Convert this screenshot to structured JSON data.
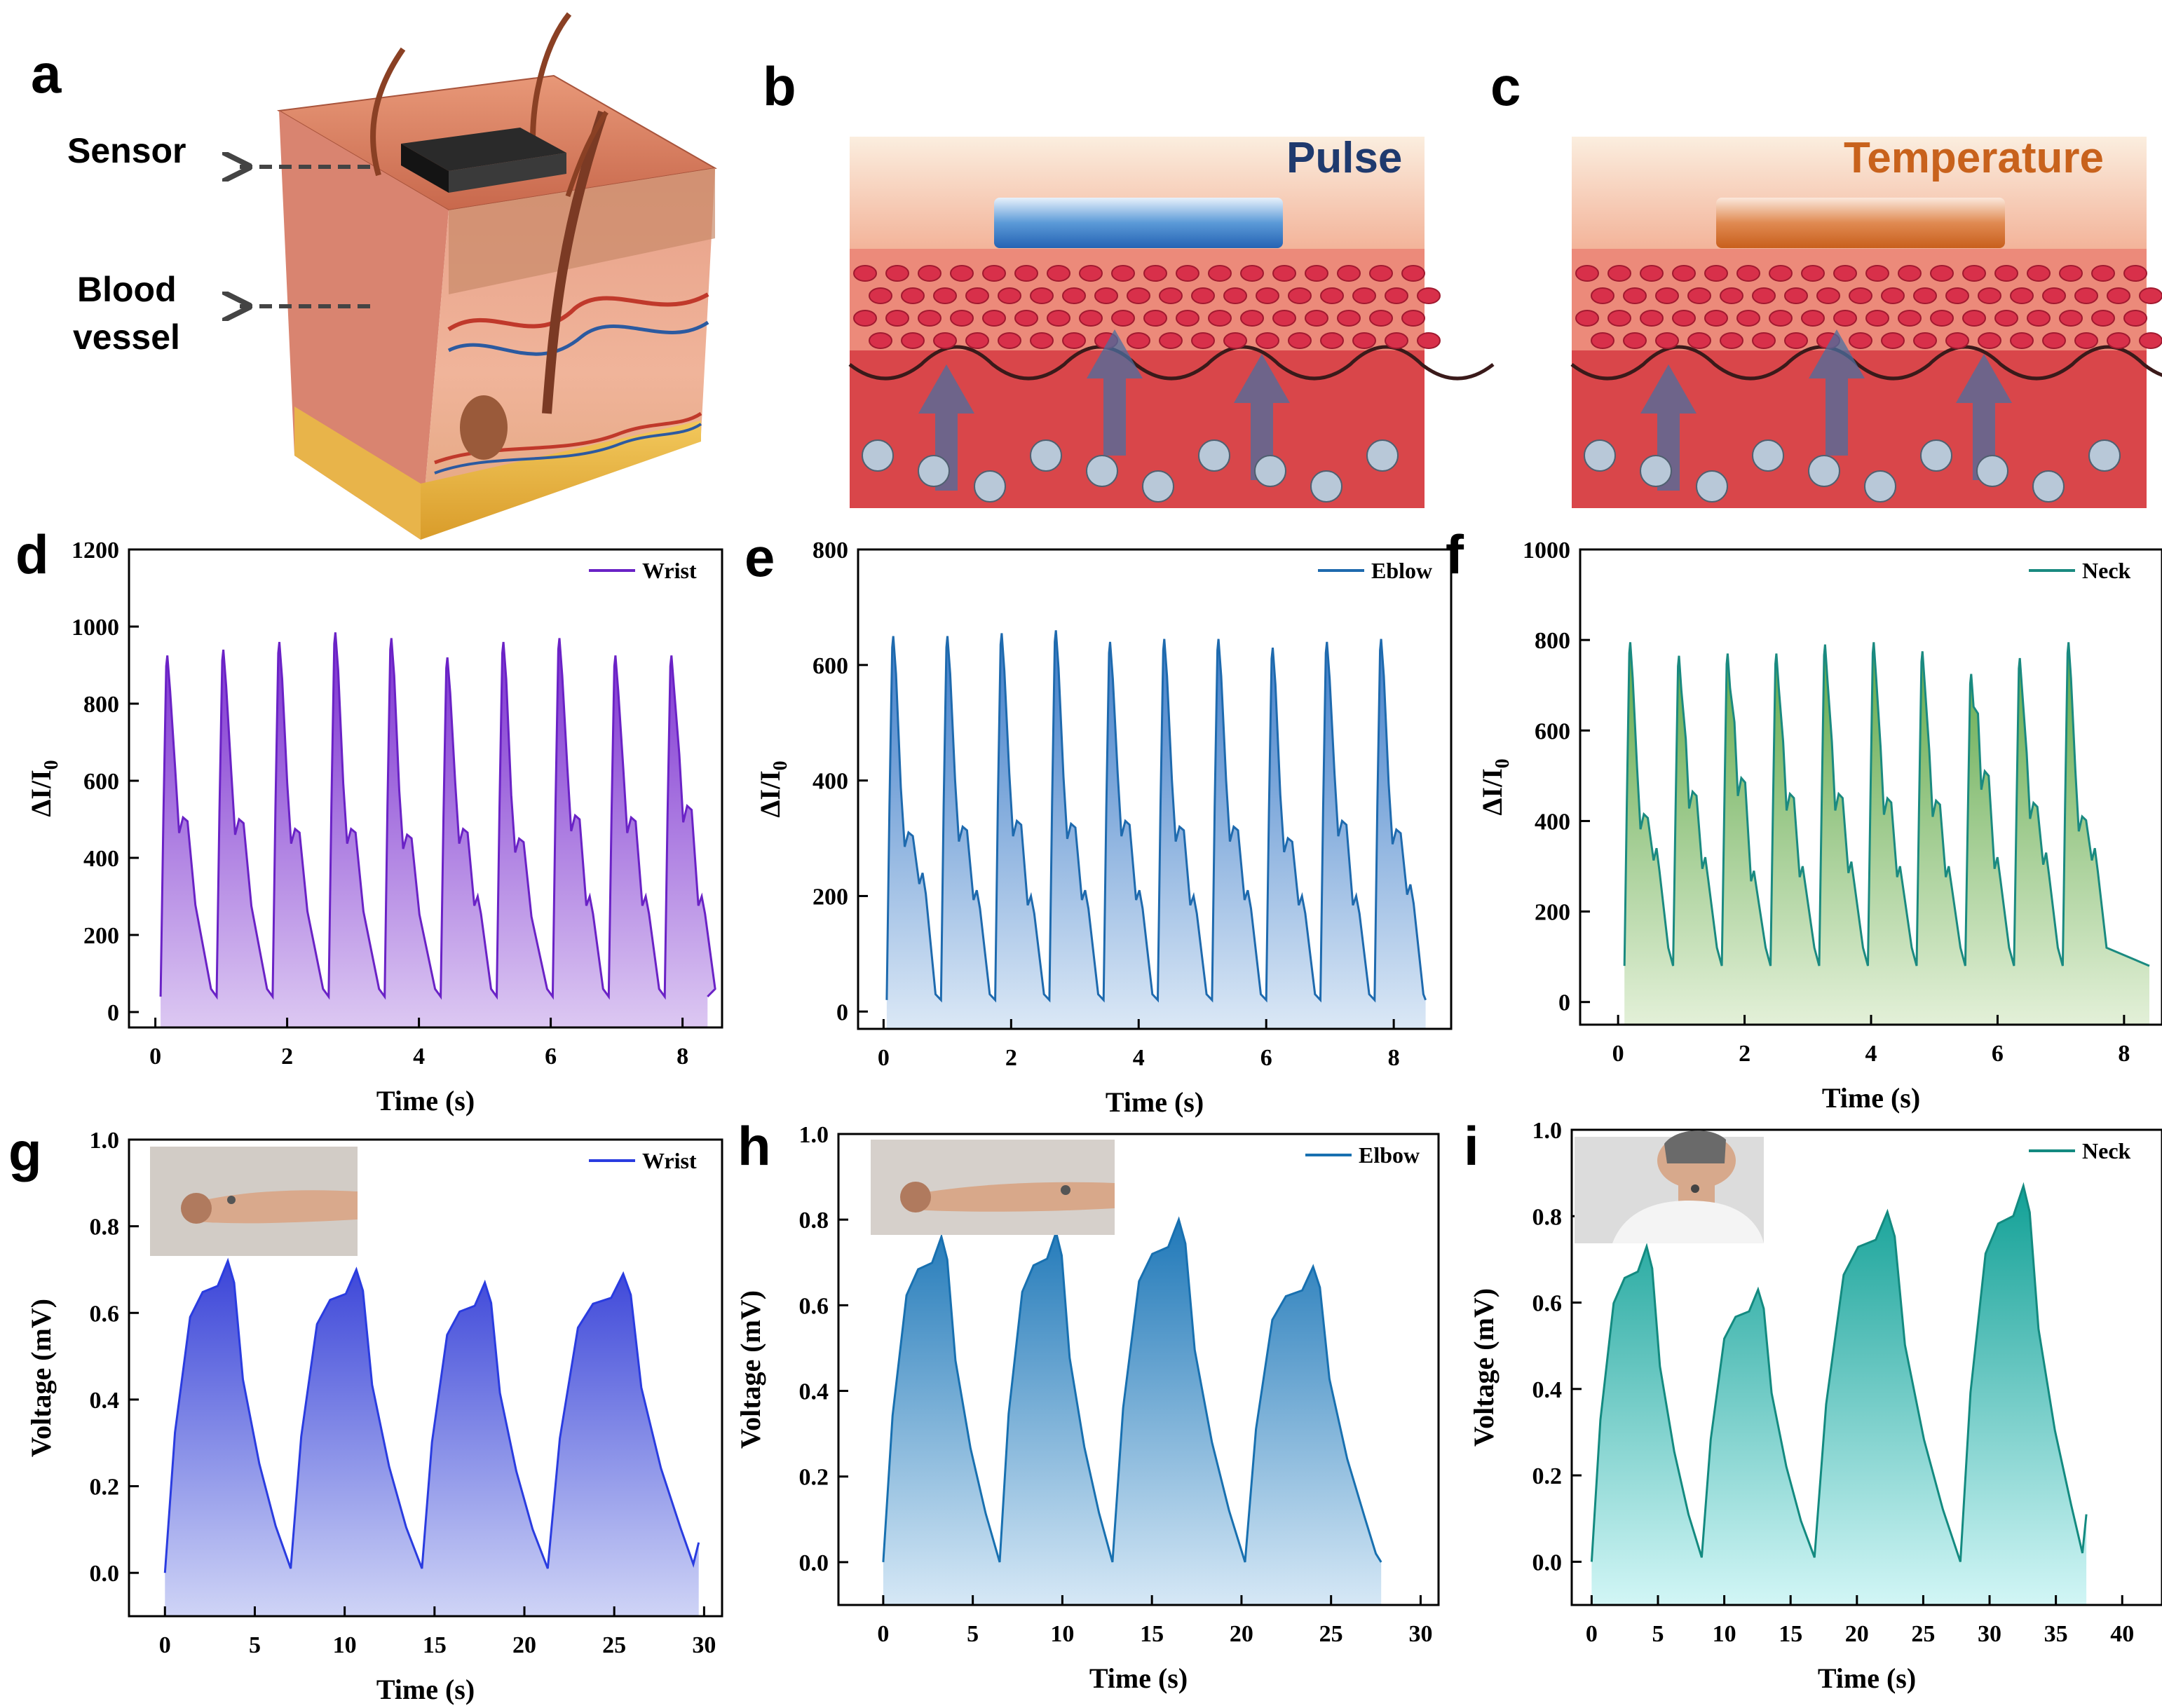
{
  "panel_labels": [
    "a",
    "b",
    "c",
    "d",
    "e",
    "f",
    "g",
    "h",
    "i"
  ],
  "illustration_a": {
    "sensor_label": "Sensor",
    "vessel_label_1": "Blood",
    "vessel_label_2": "vessel"
  },
  "illustration_b": {
    "title": "Pulse",
    "color": "#1f3a6e"
  },
  "illustration_c": {
    "title": "Temperature",
    "color": "#c8621c"
  },
  "chart_data": [
    {
      "id": "d",
      "type": "area",
      "series_name": "Wrist",
      "color": "#6a22c6",
      "fill_top": "#7b2fd0",
      "fill_bottom": "#dcc8f2",
      "xlabel": "Time (s)",
      "ylabel": "ΔI/I0",
      "xlim": [
        -0.4,
        8.6
      ],
      "ylim": [
        -40,
        1200
      ],
      "xticks": [
        0,
        2,
        4,
        6,
        8
      ],
      "yticks": [
        0,
        200,
        400,
        600,
        800,
        1000,
        1200
      ],
      "period": 0.85,
      "t0": 0.08,
      "t_end": 8.38,
      "baseline": 40,
      "peaks": [
        925,
        940,
        960,
        985,
        970,
        920,
        960,
        970,
        925,
        925
      ],
      "shoulders": [
        505,
        500,
        475,
        475,
        460,
        475,
        450,
        510,
        505,
        535
      ],
      "tails": [
        0,
        0,
        0,
        0,
        0,
        300,
        0,
        300,
        300,
        300
      ]
    },
    {
      "id": "e",
      "type": "area",
      "series_name": "Eblow",
      "color": "#1e6aae",
      "fill_top": "#3d7cc8",
      "fill_bottom": "#dbe8f6",
      "xlabel": "Time (s)",
      "ylabel": "ΔI/I0",
      "xlim": [
        -0.4,
        8.9
      ],
      "ylim": [
        -30,
        800
      ],
      "xticks": [
        0,
        2,
        4,
        6,
        8
      ],
      "yticks": [
        0,
        200,
        400,
        600,
        800
      ],
      "period": 0.85,
      "t0": 0.05,
      "t_end": 8.5,
      "baseline": 20,
      "peaks": [
        650,
        650,
        655,
        660,
        640,
        645,
        645,
        630,
        640,
        645
      ],
      "shoulders": [
        310,
        320,
        330,
        325,
        330,
        320,
        320,
        300,
        330,
        315
      ],
      "tails": [
        240,
        210,
        200,
        210,
        210,
        200,
        210,
        200,
        200,
        220
      ]
    },
    {
      "id": "f",
      "type": "area",
      "series_name": "Neck",
      "color": "#1a8a80",
      "fill_top": "#5fa84a",
      "fill_bottom": "#e3f0d8",
      "xlabel": "Time (s)",
      "ylabel": "ΔI/I0",
      "xlim": [
        -0.6,
        8.6
      ],
      "ylim": [
        -50,
        1000
      ],
      "xticks": [
        0,
        2,
        4,
        6,
        8
      ],
      "yticks": [
        0,
        200,
        400,
        600,
        800,
        1000
      ],
      "period": 0.77,
      "t0": 0.1,
      "t_end": 8.4,
      "baseline": 80,
      "peaks": [
        795,
        765,
        770,
        770,
        790,
        795,
        775,
        725,
        760,
        795
      ],
      "shoulders": [
        415,
        465,
        495,
        460,
        460,
        450,
        445,
        510,
        440,
        410
      ],
      "tails": [
        340,
        320,
        290,
        300,
        310,
        300,
        300,
        320,
        330,
        340
      ]
    },
    {
      "id": "g",
      "type": "area",
      "series_name": "Wrist",
      "color": "#2a3ce0",
      "fill_top": "#3a44d8",
      "fill_bottom": "#cfd4f6",
      "xlabel": "Time (s)",
      "ylabel": "Voltage (mV)",
      "xlim": [
        -2,
        31
      ],
      "ylim": [
        -0.1,
        1.0
      ],
      "xticks": [
        0,
        5,
        10,
        15,
        20,
        25,
        30
      ],
      "yticks": [
        0.0,
        0.2,
        0.4,
        0.6,
        0.8,
        1.0
      ],
      "starts": [
        0,
        7,
        14.3,
        21.3
      ],
      "ends": [
        7,
        14.3,
        21.3,
        29.7
      ],
      "peaks": [
        0.72,
        0.7,
        0.67,
        0.69
      ],
      "mins": [
        0.0,
        0.01,
        0.01,
        0.01
      ],
      "final": 0.07
    },
    {
      "id": "h",
      "type": "area",
      "series_name": "Elbow",
      "color": "#1870b0",
      "fill_top": "#1f78b8",
      "fill_bottom": "#d6e8f6",
      "xlabel": "Time (s)",
      "ylabel": "Voltage (mV)",
      "xlim": [
        -2.5,
        31
      ],
      "ylim": [
        -0.1,
        1.0
      ],
      "xticks": [
        0,
        5,
        10,
        15,
        20,
        25,
        30
      ],
      "yticks": [
        0.0,
        0.2,
        0.4,
        0.6,
        0.8,
        1.0
      ],
      "starts": [
        0,
        6.5,
        12.8,
        20.2
      ],
      "ends": [
        6.5,
        12.8,
        20.2,
        27.8
      ],
      "peaks": [
        0.76,
        0.77,
        0.8,
        0.69
      ],
      "mins": [
        0.0,
        0.0,
        0.0,
        0.0
      ],
      "final": 0.0
    },
    {
      "id": "i",
      "type": "area",
      "series_name": "Neck",
      "color": "#138a80",
      "fill_top": "#11a096",
      "fill_bottom": "#d2f6f6",
      "xlabel": "Time (s)",
      "ylabel": "Voltage (mV)",
      "xlim": [
        -1.5,
        43
      ],
      "ylim": [
        -0.1,
        1.0
      ],
      "xticks": [
        0,
        5,
        10,
        15,
        20,
        25,
        30,
        35,
        40
      ],
      "yticks": [
        0.0,
        0.2,
        0.4,
        0.6,
        0.8,
        1.0
      ],
      "starts": [
        0,
        8.3,
        16.8,
        27.8
      ],
      "ends": [
        8.3,
        16.8,
        27.8,
        37.3
      ],
      "peaks": [
        0.73,
        0.63,
        0.81,
        0.87
      ],
      "mins": [
        0.0,
        0.01,
        0.01,
        0.0
      ],
      "final": 0.11
    }
  ]
}
